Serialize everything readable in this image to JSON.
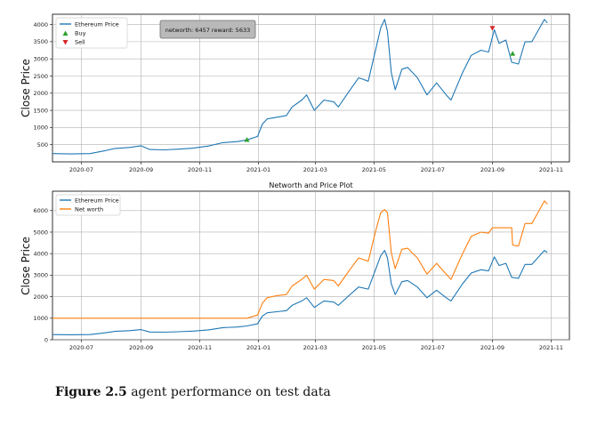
{
  "caption": {
    "label": "Figure 2.5",
    "text": " agent performance on test data"
  },
  "chart_data": [
    {
      "type": "line",
      "title": "",
      "ylabel": "Close Price",
      "xlabel": "",
      "ylim": [
        0,
        4300
      ],
      "yticks": [
        500,
        1000,
        1500,
        2000,
        2500,
        3000,
        3500,
        4000
      ],
      "xlim": [
        "2020-06-01",
        "2021-11-20"
      ],
      "xticks": [
        "2020-07",
        "2020-09",
        "2020-11",
        "2021-01",
        "2021-03",
        "2021-05",
        "2021-07",
        "2021-09",
        "2021-11"
      ],
      "grid": true,
      "legend": {
        "placement": "top-left",
        "entries": [
          "Ethereum Price",
          "Buy",
          "Sell"
        ]
      },
      "annotation": "networth: 6457 reward: 5633",
      "series": [
        {
          "name": "Ethereum Price",
          "color": "#1f77b4",
          "points": [
            [
              "2020-06-01",
              240
            ],
            [
              "2020-06-20",
              230
            ],
            [
              "2020-07-10",
              240
            ],
            [
              "2020-07-25",
              320
            ],
            [
              "2020-08-05",
              390
            ],
            [
              "2020-08-20",
              420
            ],
            [
              "2020-09-01",
              470
            ],
            [
              "2020-09-10",
              360
            ],
            [
              "2020-09-25",
              350
            ],
            [
              "2020-10-10",
              370
            ],
            [
              "2020-10-25",
              400
            ],
            [
              "2020-11-10",
              460
            ],
            [
              "2020-11-25",
              560
            ],
            [
              "2020-12-10",
              590
            ],
            [
              "2020-12-20",
              640
            ],
            [
              "2020-12-31",
              740
            ],
            [
              "2021-01-05",
              1100
            ],
            [
              "2021-01-10",
              1250
            ],
            [
              "2021-01-20",
              1300
            ],
            [
              "2021-01-30",
              1350
            ],
            [
              "2021-02-05",
              1600
            ],
            [
              "2021-02-15",
              1800
            ],
            [
              "2021-02-20",
              1950
            ],
            [
              "2021-02-28",
              1500
            ],
            [
              "2021-03-10",
              1800
            ],
            [
              "2021-03-20",
              1750
            ],
            [
              "2021-03-25",
              1600
            ],
            [
              "2021-04-05",
              2050
            ],
            [
              "2021-04-15",
              2450
            ],
            [
              "2021-04-25",
              2350
            ],
            [
              "2021-05-03",
              3300
            ],
            [
              "2021-05-08",
              3900
            ],
            [
              "2021-05-12",
              4150
            ],
            [
              "2021-05-15",
              3800
            ],
            [
              "2021-05-19",
              2600
            ],
            [
              "2021-05-23",
              2100
            ],
            [
              "2021-05-30",
              2700
            ],
            [
              "2021-06-05",
              2750
            ],
            [
              "2021-06-15",
              2450
            ],
            [
              "2021-06-25",
              1950
            ],
            [
              "2021-07-05",
              2300
            ],
            [
              "2021-07-15",
              1950
            ],
            [
              "2021-07-20",
              1800
            ],
            [
              "2021-08-01",
              2600
            ],
            [
              "2021-08-10",
              3100
            ],
            [
              "2021-08-20",
              3250
            ],
            [
              "2021-08-28",
              3200
            ],
            [
              "2021-09-03",
              3850
            ],
            [
              "2021-09-08",
              3450
            ],
            [
              "2021-09-15",
              3550
            ],
            [
              "2021-09-21",
              2900
            ],
            [
              "2021-09-28",
              2850
            ],
            [
              "2021-10-05",
              3500
            ],
            [
              "2021-10-12",
              3500
            ],
            [
              "2021-10-20",
              3900
            ],
            [
              "2021-10-25",
              4150
            ],
            [
              "2021-10-28",
              4050
            ]
          ]
        }
      ],
      "markers": [
        {
          "kind": "Buy",
          "symbol": "triangle-up",
          "color": "#2ca02c",
          "x": "2020-12-20",
          "y": 640
        },
        {
          "kind": "Buy",
          "symbol": "triangle-up",
          "color": "#2ca02c",
          "x": "2021-09-22",
          "y": 3150
        },
        {
          "kind": "Sell",
          "symbol": "triangle-down",
          "color": "#d62728",
          "x": "2021-09-01",
          "y": 3900
        }
      ]
    },
    {
      "type": "line",
      "title": "Networth and Price Plot",
      "ylabel": "Close Price",
      "xlabel": "",
      "ylim": [
        0,
        6900
      ],
      "yticks": [
        0,
        1000,
        2000,
        3000,
        4000,
        5000,
        6000
      ],
      "xlim": [
        "2020-06-01",
        "2021-11-20"
      ],
      "xticks": [
        "2020-07",
        "2020-09",
        "2020-11",
        "2021-01",
        "2021-03",
        "2021-05",
        "2021-07",
        "2021-09",
        "2021-11"
      ],
      "grid": true,
      "legend": {
        "placement": "top-left",
        "entries": [
          "Ethereum Price",
          "Net worth"
        ]
      },
      "series": [
        {
          "name": "Ethereum Price",
          "color": "#1f77b4",
          "points": [
            [
              "2020-06-01",
              240
            ],
            [
              "2020-06-20",
              230
            ],
            [
              "2020-07-10",
              240
            ],
            [
              "2020-07-25",
              320
            ],
            [
              "2020-08-05",
              390
            ],
            [
              "2020-08-20",
              420
            ],
            [
              "2020-09-01",
              470
            ],
            [
              "2020-09-10",
              360
            ],
            [
              "2020-09-25",
              350
            ],
            [
              "2020-10-10",
              370
            ],
            [
              "2020-10-25",
              400
            ],
            [
              "2020-11-10",
              460
            ],
            [
              "2020-11-25",
              560
            ],
            [
              "2020-12-10",
              590
            ],
            [
              "2020-12-20",
              640
            ],
            [
              "2020-12-31",
              740
            ],
            [
              "2021-01-05",
              1100
            ],
            [
              "2021-01-10",
              1250
            ],
            [
              "2021-01-20",
              1300
            ],
            [
              "2021-01-30",
              1350
            ],
            [
              "2021-02-05",
              1600
            ],
            [
              "2021-02-15",
              1800
            ],
            [
              "2021-02-20",
              1950
            ],
            [
              "2021-02-28",
              1500
            ],
            [
              "2021-03-10",
              1800
            ],
            [
              "2021-03-20",
              1750
            ],
            [
              "2021-03-25",
              1600
            ],
            [
              "2021-04-05",
              2050
            ],
            [
              "2021-04-15",
              2450
            ],
            [
              "2021-04-25",
              2350
            ],
            [
              "2021-05-03",
              3300
            ],
            [
              "2021-05-08",
              3900
            ],
            [
              "2021-05-12",
              4150
            ],
            [
              "2021-05-15",
              3800
            ],
            [
              "2021-05-19",
              2600
            ],
            [
              "2021-05-23",
              2100
            ],
            [
              "2021-05-30",
              2700
            ],
            [
              "2021-06-05",
              2750
            ],
            [
              "2021-06-15",
              2450
            ],
            [
              "2021-06-25",
              1950
            ],
            [
              "2021-07-05",
              2300
            ],
            [
              "2021-07-15",
              1950
            ],
            [
              "2021-07-20",
              1800
            ],
            [
              "2021-08-01",
              2600
            ],
            [
              "2021-08-10",
              3100
            ],
            [
              "2021-08-20",
              3250
            ],
            [
              "2021-08-28",
              3200
            ],
            [
              "2021-09-03",
              3850
            ],
            [
              "2021-09-08",
              3450
            ],
            [
              "2021-09-15",
              3550
            ],
            [
              "2021-09-21",
              2900
            ],
            [
              "2021-09-28",
              2850
            ],
            [
              "2021-10-05",
              3500
            ],
            [
              "2021-10-12",
              3500
            ],
            [
              "2021-10-20",
              3900
            ],
            [
              "2021-10-25",
              4150
            ],
            [
              "2021-10-28",
              4050
            ]
          ]
        },
        {
          "name": "Net worth",
          "color": "#ff7f0e",
          "points": [
            [
              "2020-06-01",
              1000
            ],
            [
              "2020-12-20",
              1000
            ],
            [
              "2020-12-31",
              1150
            ],
            [
              "2021-01-05",
              1700
            ],
            [
              "2021-01-10",
              1950
            ],
            [
              "2021-01-20",
              2050
            ],
            [
              "2021-01-30",
              2100
            ],
            [
              "2021-02-05",
              2500
            ],
            [
              "2021-02-15",
              2800
            ],
            [
              "2021-02-20",
              3000
            ],
            [
              "2021-02-28",
              2350
            ],
            [
              "2021-03-10",
              2800
            ],
            [
              "2021-03-20",
              2750
            ],
            [
              "2021-03-25",
              2500
            ],
            [
              "2021-04-05",
              3200
            ],
            [
              "2021-04-15",
              3800
            ],
            [
              "2021-04-25",
              3650
            ],
            [
              "2021-05-03",
              5100
            ],
            [
              "2021-05-08",
              5900
            ],
            [
              "2021-05-12",
              6050
            ],
            [
              "2021-05-15",
              5900
            ],
            [
              "2021-05-19",
              4050
            ],
            [
              "2021-05-23",
              3300
            ],
            [
              "2021-05-30",
              4200
            ],
            [
              "2021-06-05",
              4250
            ],
            [
              "2021-06-15",
              3800
            ],
            [
              "2021-06-25",
              3050
            ],
            [
              "2021-07-05",
              3550
            ],
            [
              "2021-07-15",
              3050
            ],
            [
              "2021-07-20",
              2800
            ],
            [
              "2021-08-01",
              4000
            ],
            [
              "2021-08-10",
              4800
            ],
            [
              "2021-08-20",
              5000
            ],
            [
              "2021-08-28",
              4950
            ],
            [
              "2021-09-01",
              5200
            ],
            [
              "2021-09-21",
              5200
            ],
            [
              "2021-09-22",
              4400
            ],
            [
              "2021-09-28",
              4350
            ],
            [
              "2021-10-05",
              5400
            ],
            [
              "2021-10-12",
              5400
            ],
            [
              "2021-10-20",
              6050
            ],
            [
              "2021-10-25",
              6450
            ],
            [
              "2021-10-28",
              6300
            ]
          ]
        }
      ]
    }
  ]
}
